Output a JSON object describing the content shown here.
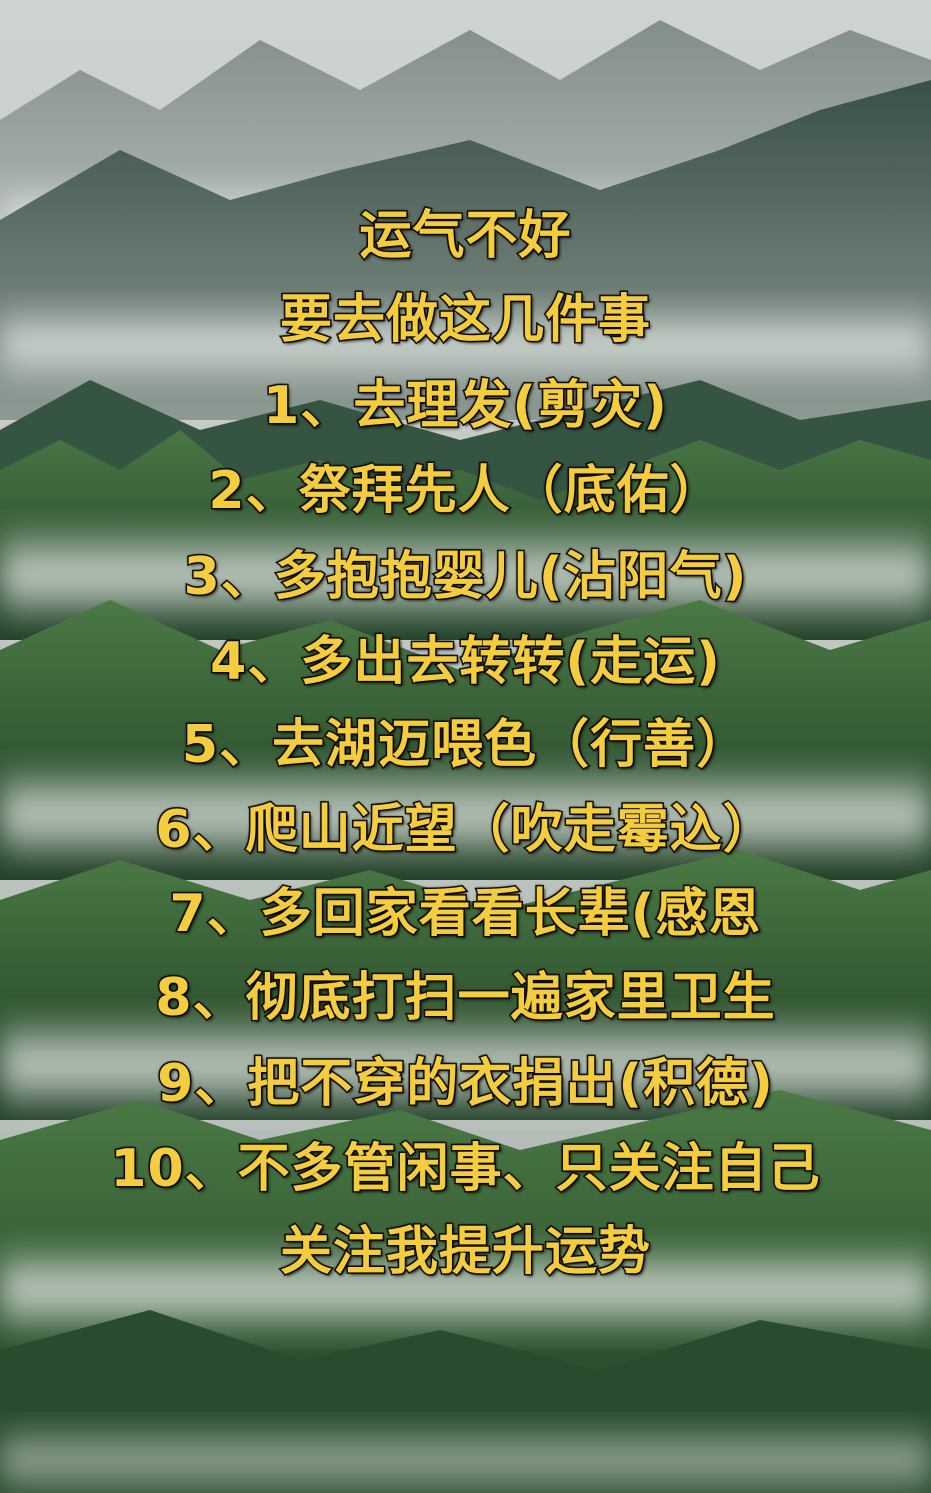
{
  "background": {
    "description_icon": "misty-mountains-background",
    "colors": {
      "sky": "#c9cdca",
      "mist": "#dfe3e0",
      "mountain_far": "#7d8a86",
      "mountain_mid": "#3f5a4e",
      "forest": "#2f5a34",
      "forest_light": "#4f7d44"
    }
  },
  "text_color": "#f3cd3f",
  "outline_color": "#1b1508",
  "lines": [
    "运气不好",
    "要去做这几件事",
    "1、去理发(剪灾)",
    "2、祭拜先人（底佑）",
    "3、多抱抱婴儿(沾阳气)",
    "4、多出去转转(走运)",
    "5、去湖迈喂色（行善）",
    "6、爬山近望（吹走霉込）",
    "7、多回家看看长辈(感恩",
    "8、彻底打扫一遍家里卫生",
    "9、把不穿的衣捐出(积德)",
    "10、不多管闲事、只关注自己",
    "关注我提升运势"
  ]
}
